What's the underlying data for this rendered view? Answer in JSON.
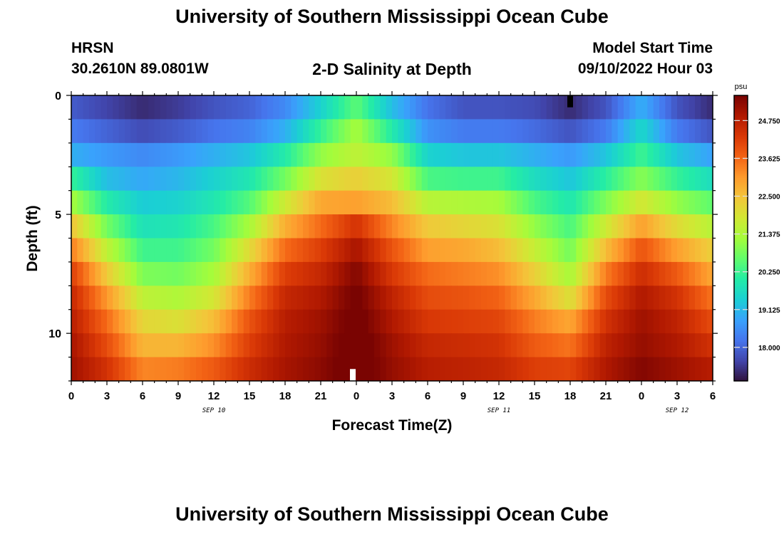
{
  "header": {
    "title": "University of Southern Mississippi Ocean Cube",
    "station": "HRSN",
    "coords": "30.2610N  89.0801W",
    "subtitle": "2-D Salinity at Depth",
    "start_label": "Model Start Time",
    "start_value": "09/10/2022 Hour 03",
    "bottom_title": "University of Southern Mississippi Ocean Cube"
  },
  "chart_data": {
    "type": "heatmap",
    "title": "2-D Salinity at Depth",
    "xlabel": "Forecast Time(Z)",
    "ylabel": "Depth (ft)",
    "x_range_hours": [
      0,
      54
    ],
    "y_range_ft": [
      0,
      12
    ],
    "x_ticks": [
      {
        "h": 0,
        "label": "0"
      },
      {
        "h": 3,
        "label": "3"
      },
      {
        "h": 6,
        "label": "6"
      },
      {
        "h": 9,
        "label": "9"
      },
      {
        "h": 12,
        "label": "12"
      },
      {
        "h": 15,
        "label": "15"
      },
      {
        "h": 18,
        "label": "18"
      },
      {
        "h": 21,
        "label": "21"
      },
      {
        "h": 24,
        "label": "0"
      },
      {
        "h": 27,
        "label": "3"
      },
      {
        "h": 30,
        "label": "6"
      },
      {
        "h": 33,
        "label": "9"
      },
      {
        "h": 36,
        "label": "12"
      },
      {
        "h": 39,
        "label": "15"
      },
      {
        "h": 42,
        "label": "18"
      },
      {
        "h": 45,
        "label": "21"
      },
      {
        "h": 48,
        "label": "0"
      },
      {
        "h": 51,
        "label": "3"
      },
      {
        "h": 54,
        "label": "6"
      }
    ],
    "date_labels": [
      {
        "h": 12,
        "label": "SEP 10"
      },
      {
        "h": 36,
        "label": "SEP 11"
      },
      {
        "h": 51,
        "label": "SEP 12"
      }
    ],
    "y_ticks": [
      {
        "v": 0,
        "label": "0"
      },
      {
        "v": 5,
        "label": "5"
      },
      {
        "v": 10,
        "label": "10"
      }
    ],
    "colorbar": {
      "unit": "psu",
      "min": 17.0,
      "max": 25.5,
      "ticks": [
        "18.000",
        "19.125",
        "20.250",
        "21.375",
        "22.500",
        "23.625",
        "24.750"
      ],
      "colors": [
        "#30123b",
        "#4145ab",
        "#4675ed",
        "#39a2fc",
        "#1bcfd4",
        "#24eca6",
        "#61fc6c",
        "#a4fc3b",
        "#d1e834",
        "#f3c63a",
        "#fe9b2d",
        "#f36315",
        "#d93806",
        "#b11901",
        "#7a0402"
      ]
    },
    "depth_levels_ft": [
      0.5,
      1.5,
      2.5,
      3.5,
      4.5,
      5.5,
      6.5,
      7.5,
      8.5,
      9.5,
      10.5,
      11.5
    ],
    "forecast_hours": [
      0,
      3,
      6,
      9,
      12,
      15,
      18,
      21,
      24,
      27,
      30,
      33,
      36,
      39,
      42,
      45,
      48,
      51,
      54
    ],
    "salinity_psu": [
      [
        17.9,
        17.6,
        17.3,
        17.5,
        17.8,
        18.0,
        18.5,
        19.5,
        20.6,
        19.2,
        18.2,
        17.8,
        17.8,
        17.7,
        17.3,
        17.8,
        19.0,
        17.8,
        17.3
      ],
      [
        18.3,
        18.0,
        17.7,
        17.9,
        18.2,
        18.4,
        19.0,
        20.2,
        21.3,
        20.0,
        18.6,
        18.3,
        18.3,
        18.1,
        17.8,
        18.3,
        19.6,
        18.3,
        17.8
      ],
      [
        19.0,
        18.7,
        18.5,
        18.7,
        19.0,
        19.3,
        20.0,
        21.1,
        21.6,
        21.1,
        19.5,
        19.3,
        19.3,
        19.0,
        18.7,
        19.3,
        20.3,
        19.3,
        18.8
      ],
      [
        20.2,
        19.2,
        18.9,
        19.1,
        19.5,
        19.9,
        20.8,
        22.0,
        22.3,
        21.9,
        20.4,
        20.3,
        20.3,
        19.7,
        19.3,
        20.1,
        21.0,
        20.2,
        19.7
      ],
      [
        21.3,
        20.0,
        19.4,
        19.5,
        19.9,
        20.5,
        21.8,
        22.9,
        23.0,
        22.6,
        21.5,
        21.4,
        21.3,
        20.4,
        19.9,
        20.9,
        21.9,
        21.1,
        20.6
      ],
      [
        22.5,
        20.8,
        19.8,
        19.9,
        20.4,
        21.3,
        22.8,
        23.6,
        24.4,
        23.3,
        22.4,
        22.2,
        22.0,
        21.1,
        20.4,
        21.8,
        23.0,
        22.1,
        21.5
      ],
      [
        23.4,
        21.6,
        20.3,
        20.3,
        20.8,
        22.1,
        23.6,
        24.2,
        25.0,
        23.9,
        23.0,
        22.9,
        22.6,
        21.7,
        20.8,
        22.6,
        23.9,
        23.0,
        22.3
      ],
      [
        24.2,
        22.4,
        20.9,
        20.8,
        21.3,
        22.8,
        24.2,
        24.6,
        25.4,
        24.3,
        23.6,
        23.4,
        23.2,
        22.3,
        21.3,
        23.4,
        24.5,
        23.8,
        22.9
      ],
      [
        24.6,
        23.1,
        21.6,
        21.4,
        21.9,
        23.4,
        24.6,
        24.9,
        25.6,
        24.7,
        24.0,
        23.9,
        23.7,
        22.9,
        22.0,
        24.0,
        24.9,
        24.4,
        23.5
      ],
      [
        24.8,
        23.6,
        22.2,
        22.0,
        22.6,
        23.9,
        24.8,
        25.1,
        25.7,
        24.9,
        24.3,
        24.2,
        24.1,
        23.4,
        22.9,
        24.4,
        25.1,
        24.7,
        24.0
      ],
      [
        25.0,
        24.0,
        22.7,
        22.7,
        23.2,
        24.2,
        24.9,
        25.2,
        25.8,
        25.1,
        24.6,
        24.5,
        24.4,
        23.8,
        23.5,
        24.7,
        25.2,
        24.9,
        24.4
      ],
      [
        25.1,
        24.4,
        23.3,
        23.4,
        23.8,
        24.5,
        25.0,
        25.3,
        25.8,
        25.2,
        24.8,
        24.7,
        24.6,
        24.2,
        24.1,
        24.9,
        25.4,
        25.1,
        24.8
      ]
    ],
    "markers": [
      {
        "h": 42,
        "depth_ft": 0.25,
        "color": "#000000"
      },
      {
        "h": 23.7,
        "depth_ft": 11.75,
        "color": "#ffffff"
      }
    ]
  }
}
